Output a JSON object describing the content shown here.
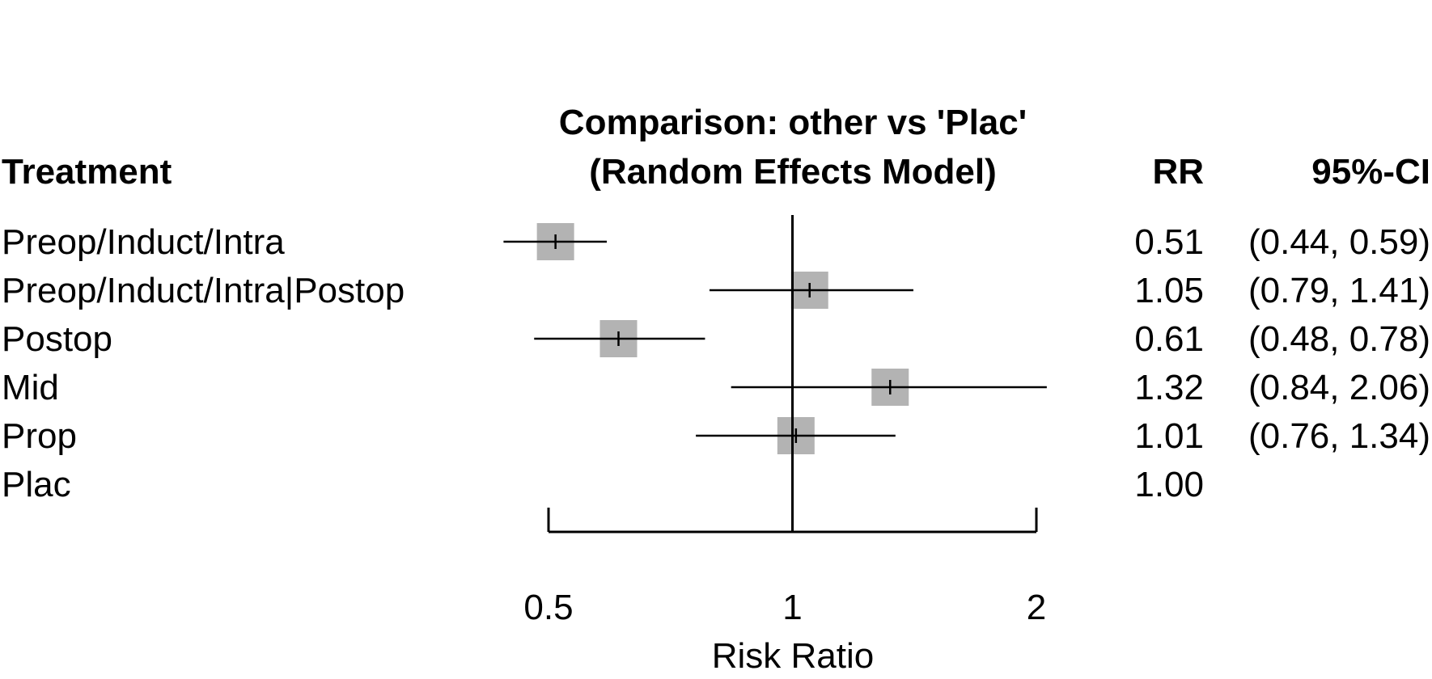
{
  "chart_data": {
    "type": "forest",
    "title": [
      "Comparison: other vs 'Plac'",
      "(Random Effects Model)"
    ],
    "columns": {
      "label": "Treatment",
      "estimate": "RR",
      "ci": "95%-CI"
    },
    "xlabel": "Risk Ratio",
    "x_scale": "log",
    "xlim": [
      0.5,
      2
    ],
    "xticks": [
      {
        "value": 0.5,
        "label": "0.5"
      },
      {
        "value": 1,
        "label": "1"
      },
      {
        "value": 2,
        "label": "2"
      }
    ],
    "reference_line": 1,
    "marker_color": "#b3b3b3",
    "rows": [
      {
        "treatment": "Preop/Induct/Intra",
        "rr": 0.51,
        "lower": 0.44,
        "upper": 0.59,
        "rr_text": "0.51",
        "ci_text": "(0.44, 0.59)"
      },
      {
        "treatment": "Preop/Induct/Intra|Postop",
        "rr": 1.05,
        "lower": 0.79,
        "upper": 1.41,
        "rr_text": "1.05",
        "ci_text": "(0.79, 1.41)"
      },
      {
        "treatment": "Postop",
        "rr": 0.61,
        "lower": 0.48,
        "upper": 0.78,
        "rr_text": "0.61",
        "ci_text": "(0.48, 0.78)"
      },
      {
        "treatment": "Mid",
        "rr": 1.32,
        "lower": 0.84,
        "upper": 2.06,
        "rr_text": "1.32",
        "ci_text": "(0.84, 2.06)"
      },
      {
        "treatment": "Prop",
        "rr": 1.01,
        "lower": 0.76,
        "upper": 1.34,
        "rr_text": "1.01",
        "ci_text": "(0.76, 1.34)"
      },
      {
        "treatment": "Plac",
        "rr": 1.0,
        "lower": null,
        "upper": null,
        "rr_text": "1.00",
        "ci_text": ""
      }
    ]
  }
}
